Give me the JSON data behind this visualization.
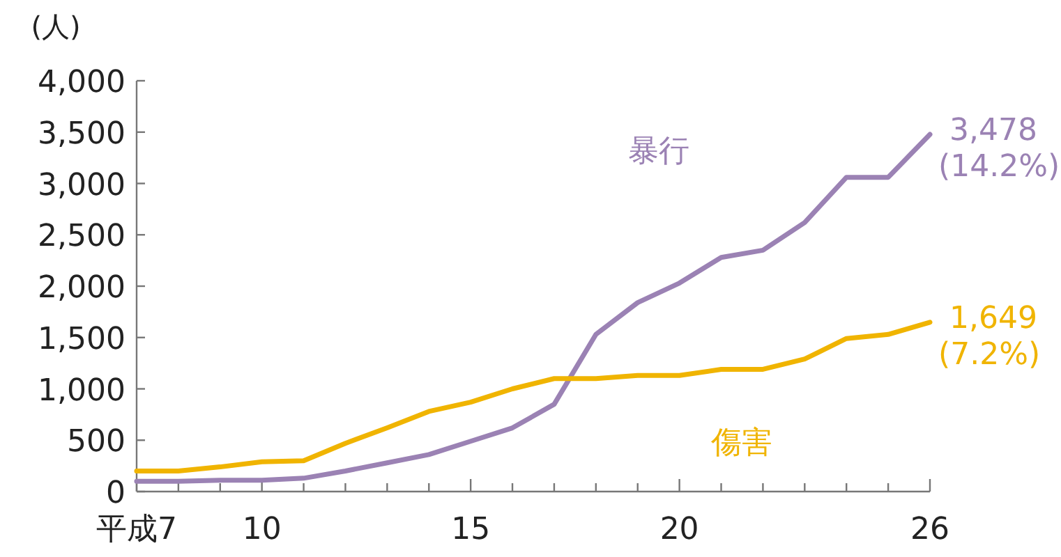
{
  "chart_data": {
    "type": "line",
    "ylabel": "(人)",
    "x": [
      7,
      8,
      9,
      10,
      11,
      12,
      13,
      14,
      15,
      16,
      17,
      18,
      19,
      20,
      21,
      22,
      23,
      24,
      25,
      26
    ],
    "xlim": [
      7,
      26
    ],
    "xticks": [
      {
        "value": 7,
        "label": "平成7"
      },
      {
        "value": 8,
        "label": null
      },
      {
        "value": 9,
        "label": null
      },
      10,
      {
        "value": 11,
        "label": null
      },
      {
        "value": 12,
        "label": null
      },
      {
        "value": 13,
        "label": null
      },
      {
        "value": 14,
        "label": null
      },
      15,
      {
        "value": 16,
        "label": null
      },
      {
        "value": 17,
        "label": null
      },
      {
        "value": 18,
        "label": null
      },
      {
        "value": 19,
        "label": null
      },
      20,
      {
        "value": 21,
        "label": null
      },
      {
        "value": 22,
        "label": null
      },
      {
        "value": 23,
        "label": null
      },
      {
        "value": 24,
        "label": null
      },
      {
        "value": 25,
        "label": null
      },
      26
    ],
    "ylim": [
      0,
      4000
    ],
    "yticks": [
      0,
      500,
      {
        "value": 1000,
        "label": "1,000"
      },
      {
        "value": 1500,
        "label": "1,500"
      },
      {
        "value": 2000,
        "label": "2,000"
      },
      {
        "value": 2500,
        "label": "2,500"
      },
      {
        "value": 3000,
        "label": "3,000"
      },
      {
        "value": 3500,
        "label": "3,500"
      },
      {
        "value": 4000,
        "label": "4,000"
      }
    ],
    "grid": false,
    "legend": false,
    "marker": "none",
    "line_style": "solid",
    "series": [
      {
        "name": "暴行",
        "color": "#9b82b4",
        "values": [
          100,
          100,
          110,
          110,
          130,
          200,
          280,
          360,
          490,
          620,
          850,
          1530,
          1840,
          2030,
          2280,
          2350,
          2620,
          3060,
          3060,
          3478
        ],
        "value_labels": [
          null,
          null,
          null,
          null,
          null,
          null,
          null,
          null,
          null,
          null,
          null,
          null,
          null,
          null,
          null,
          null,
          null,
          null,
          null,
          "3,478"
        ]
      },
      {
        "name": "傷害",
        "color": "#f0b400",
        "values": [
          200,
          200,
          240,
          290,
          300,
          470,
          620,
          780,
          870,
          1000,
          1100,
          1100,
          1130,
          1130,
          1190,
          1190,
          1290,
          1490,
          1530,
          1649
        ],
        "value_labels": [
          null,
          null,
          null,
          null,
          null,
          null,
          null,
          null,
          null,
          null,
          null,
          null,
          null,
          null,
          null,
          null,
          null,
          null,
          null,
          "1,649"
        ]
      }
    ],
    "annotations": [
      {
        "text": "(14.2%)",
        "x": 26,
        "y": 3478
      },
      {
        "text": "(7.2%)",
        "x": 26,
        "y": 1649
      }
    ]
  }
}
